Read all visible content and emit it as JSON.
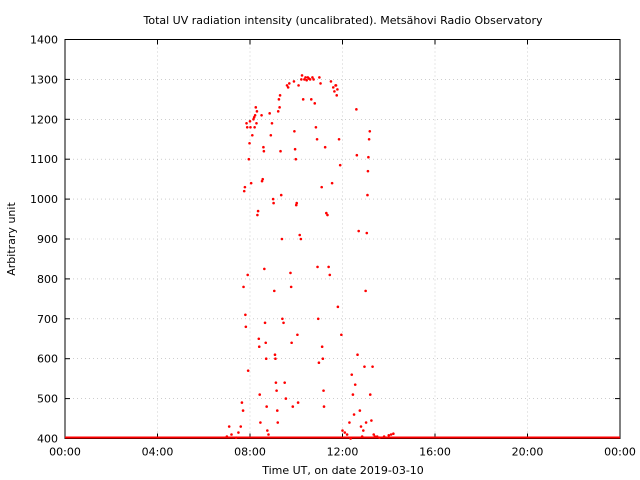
{
  "chart_data": {
    "type": "scatter",
    "title": "Total UV radiation intensity (uncalibrated). Metsähovi Radio Observatory",
    "xlabel": "Time UT, on date 2019-03-10",
    "ylabel": "Arbitrary unit",
    "xlim": [
      0,
      24
    ],
    "ylim": [
      400,
      1400
    ],
    "grid": true,
    "xticks": [
      {
        "value": 0,
        "label": "00:00"
      },
      {
        "value": 4,
        "label": "04:00"
      },
      {
        "value": 8,
        "label": "08:00"
      },
      {
        "value": 12,
        "label": "12:00"
      },
      {
        "value": 16,
        "label": "16:00"
      },
      {
        "value": 20,
        "label": "20:00"
      },
      {
        "value": 24,
        "label": "00:00"
      }
    ],
    "yticks": [
      {
        "value": 400,
        "label": "400"
      },
      {
        "value": 500,
        "label": "500"
      },
      {
        "value": 600,
        "label": "600"
      },
      {
        "value": 700,
        "label": "700"
      },
      {
        "value": 800,
        "label": "800"
      },
      {
        "value": 900,
        "label": "900"
      },
      {
        "value": 1000,
        "label": "1000"
      },
      {
        "value": 1100,
        "label": "1100"
      },
      {
        "value": 1200,
        "label": "1200"
      },
      {
        "value": 1300,
        "label": "1300"
      },
      {
        "value": 1400,
        "label": "1400"
      }
    ],
    "series": [
      {
        "color": "#ff0000",
        "points": [
          [
            7.0,
            405
          ],
          [
            7.1,
            430
          ],
          [
            7.2,
            410
          ],
          [
            7.4,
            402
          ],
          [
            7.5,
            415
          ],
          [
            7.6,
            430
          ],
          [
            7.65,
            490
          ],
          [
            7.7,
            470
          ],
          [
            7.72,
            780
          ],
          [
            7.75,
            1020
          ],
          [
            7.78,
            1030
          ],
          [
            7.8,
            710
          ],
          [
            7.82,
            680
          ],
          [
            7.85,
            1190
          ],
          [
            7.88,
            1180
          ],
          [
            7.9,
            810
          ],
          [
            7.92,
            570
          ],
          [
            7.95,
            1100
          ],
          [
            7.98,
            1140
          ],
          [
            8.0,
            1195
          ],
          [
            8.02,
            1180
          ],
          [
            8.05,
            1040
          ],
          [
            8.1,
            1160
          ],
          [
            8.15,
            1200
          ],
          [
            8.18,
            1205
          ],
          [
            8.2,
            1180
          ],
          [
            8.22,
            1210
          ],
          [
            8.25,
            1230
          ],
          [
            8.28,
            1190
          ],
          [
            8.3,
            1220
          ],
          [
            8.32,
            960
          ],
          [
            8.35,
            970
          ],
          [
            8.38,
            650
          ],
          [
            8.4,
            630
          ],
          [
            8.42,
            510
          ],
          [
            8.45,
            440
          ],
          [
            8.5,
            1210
          ],
          [
            8.52,
            1045
          ],
          [
            8.55,
            1050
          ],
          [
            8.58,
            1130
          ],
          [
            8.6,
            1120
          ],
          [
            8.62,
            825
          ],
          [
            8.65,
            690
          ],
          [
            8.68,
            640
          ],
          [
            8.7,
            600
          ],
          [
            8.72,
            480
          ],
          [
            8.75,
            420
          ],
          [
            8.8,
            410
          ],
          [
            8.85,
            1215
          ],
          [
            8.9,
            1160
          ],
          [
            8.95,
            1190
          ],
          [
            9.0,
            1000
          ],
          [
            9.02,
            990
          ],
          [
            9.05,
            770
          ],
          [
            9.08,
            610
          ],
          [
            9.1,
            600
          ],
          [
            9.12,
            540
          ],
          [
            9.15,
            520
          ],
          [
            9.18,
            470
          ],
          [
            9.2,
            440
          ],
          [
            9.22,
            1220
          ],
          [
            9.25,
            1250
          ],
          [
            9.28,
            1230
          ],
          [
            9.3,
            1260
          ],
          [
            9.32,
            1120
          ],
          [
            9.35,
            1010
          ],
          [
            9.38,
            900
          ],
          [
            9.4,
            700
          ],
          [
            9.45,
            690
          ],
          [
            9.5,
            540
          ],
          [
            9.55,
            500
          ],
          [
            9.6,
            1285
          ],
          [
            9.65,
            1280
          ],
          [
            9.7,
            1290
          ],
          [
            9.75,
            815
          ],
          [
            9.78,
            780
          ],
          [
            9.8,
            640
          ],
          [
            9.85,
            480
          ],
          [
            9.9,
            1295
          ],
          [
            9.92,
            1170
          ],
          [
            9.95,
            1125
          ],
          [
            9.98,
            1100
          ],
          [
            10.0,
            985
          ],
          [
            10.02,
            990
          ],
          [
            10.05,
            660
          ],
          [
            10.08,
            490
          ],
          [
            10.1,
            1285
          ],
          [
            10.15,
            910
          ],
          [
            10.2,
            900
          ],
          [
            10.22,
            1300
          ],
          [
            10.25,
            1310
          ],
          [
            10.3,
            1250
          ],
          [
            10.35,
            1300
          ],
          [
            10.4,
            1305
          ],
          [
            10.45,
            1298
          ],
          [
            10.5,
            1305
          ],
          [
            10.55,
            1302
          ],
          [
            10.6,
            1300
          ],
          [
            10.65,
            1250
          ],
          [
            10.7,
            1305
          ],
          [
            10.75,
            1300
          ],
          [
            10.8,
            1240
          ],
          [
            10.85,
            1180
          ],
          [
            10.9,
            1150
          ],
          [
            10.92,
            830
          ],
          [
            10.95,
            700
          ],
          [
            10.98,
            590
          ],
          [
            11.0,
            1305
          ],
          [
            11.05,
            1290
          ],
          [
            11.1,
            1030
          ],
          [
            11.12,
            630
          ],
          [
            11.15,
            600
          ],
          [
            11.18,
            520
          ],
          [
            11.2,
            480
          ],
          [
            11.25,
            1130
          ],
          [
            11.3,
            965
          ],
          [
            11.35,
            960
          ],
          [
            11.4,
            830
          ],
          [
            11.45,
            810
          ],
          [
            11.5,
            1295
          ],
          [
            11.55,
            1040
          ],
          [
            11.6,
            1280
          ],
          [
            11.65,
            1270
          ],
          [
            11.7,
            1285
          ],
          [
            11.72,
            1285
          ],
          [
            11.75,
            1260
          ],
          [
            11.78,
            1275
          ],
          [
            11.8,
            730
          ],
          [
            11.85,
            1150
          ],
          [
            11.9,
            1085
          ],
          [
            11.95,
            660
          ],
          [
            12.0,
            420
          ],
          [
            12.1,
            415
          ],
          [
            12.2,
            410
          ],
          [
            12.3,
            440
          ],
          [
            12.35,
            400
          ],
          [
            12.4,
            560
          ],
          [
            12.45,
            510
          ],
          [
            12.5,
            460
          ],
          [
            12.55,
            535
          ],
          [
            12.6,
            1225
          ],
          [
            12.62,
            1110
          ],
          [
            12.65,
            610
          ],
          [
            12.7,
            920
          ],
          [
            12.75,
            470
          ],
          [
            12.8,
            430
          ],
          [
            12.85,
            405
          ],
          [
            12.9,
            420
          ],
          [
            12.95,
            580
          ],
          [
            13.0,
            770
          ],
          [
            13.02,
            440
          ],
          [
            13.05,
            915
          ],
          [
            13.08,
            1010
          ],
          [
            13.1,
            1070
          ],
          [
            13.12,
            1105
          ],
          [
            13.15,
            1150
          ],
          [
            13.18,
            1170
          ],
          [
            13.2,
            510
          ],
          [
            13.25,
            445
          ],
          [
            13.3,
            580
          ],
          [
            13.35,
            410
          ],
          [
            13.4,
            405
          ],
          [
            13.5,
            405
          ],
          [
            13.6,
            402
          ],
          [
            13.8,
            405
          ],
          [
            14.0,
            408
          ],
          [
            14.1,
            410
          ],
          [
            14.2,
            412
          ]
        ]
      }
    ]
  }
}
